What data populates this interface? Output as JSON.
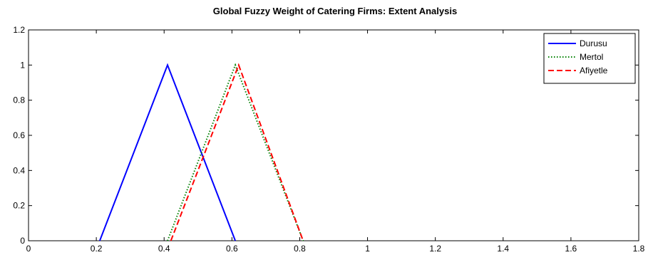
{
  "chart_data": {
    "type": "line",
    "title": "Global Fuzzy Weight of Catering Firms: Extent Analysis",
    "xlabel": "",
    "ylabel": "",
    "xlim": [
      0,
      1.8
    ],
    "ylim": [
      0,
      1.2
    ],
    "x_ticks": [
      0,
      0.2,
      0.4,
      0.6,
      0.8,
      1,
      1.2,
      1.4,
      1.6,
      1.8
    ],
    "x_tick_labels": [
      "0",
      "0.2",
      "0.4",
      "0.6",
      "0.8",
      "1",
      "1.2",
      "1.4",
      "1.6",
      "1.8"
    ],
    "y_ticks": [
      0,
      0.2,
      0.4,
      0.6,
      0.8,
      1,
      1.2
    ],
    "y_tick_labels": [
      "0",
      "0.2",
      "0.4",
      "0.6",
      "0.8",
      "1",
      "1.2"
    ],
    "grid": false,
    "legend_position": "top-right",
    "series": [
      {
        "name": "Durusu",
        "color": "#0000ff",
        "style": "solid",
        "x": [
          0.21,
          0.41,
          0.61
        ],
        "y": [
          0,
          1,
          0
        ]
      },
      {
        "name": "Mertol",
        "color": "#008000",
        "style": "dotted",
        "x": [
          0.41,
          0.61,
          0.81
        ],
        "y": [
          0,
          1,
          0
        ]
      },
      {
        "name": "Afiyetle",
        "color": "#ff0000",
        "style": "dashed",
        "x": [
          0.42,
          0.62,
          0.81
        ],
        "y": [
          0,
          1,
          0
        ]
      }
    ]
  }
}
